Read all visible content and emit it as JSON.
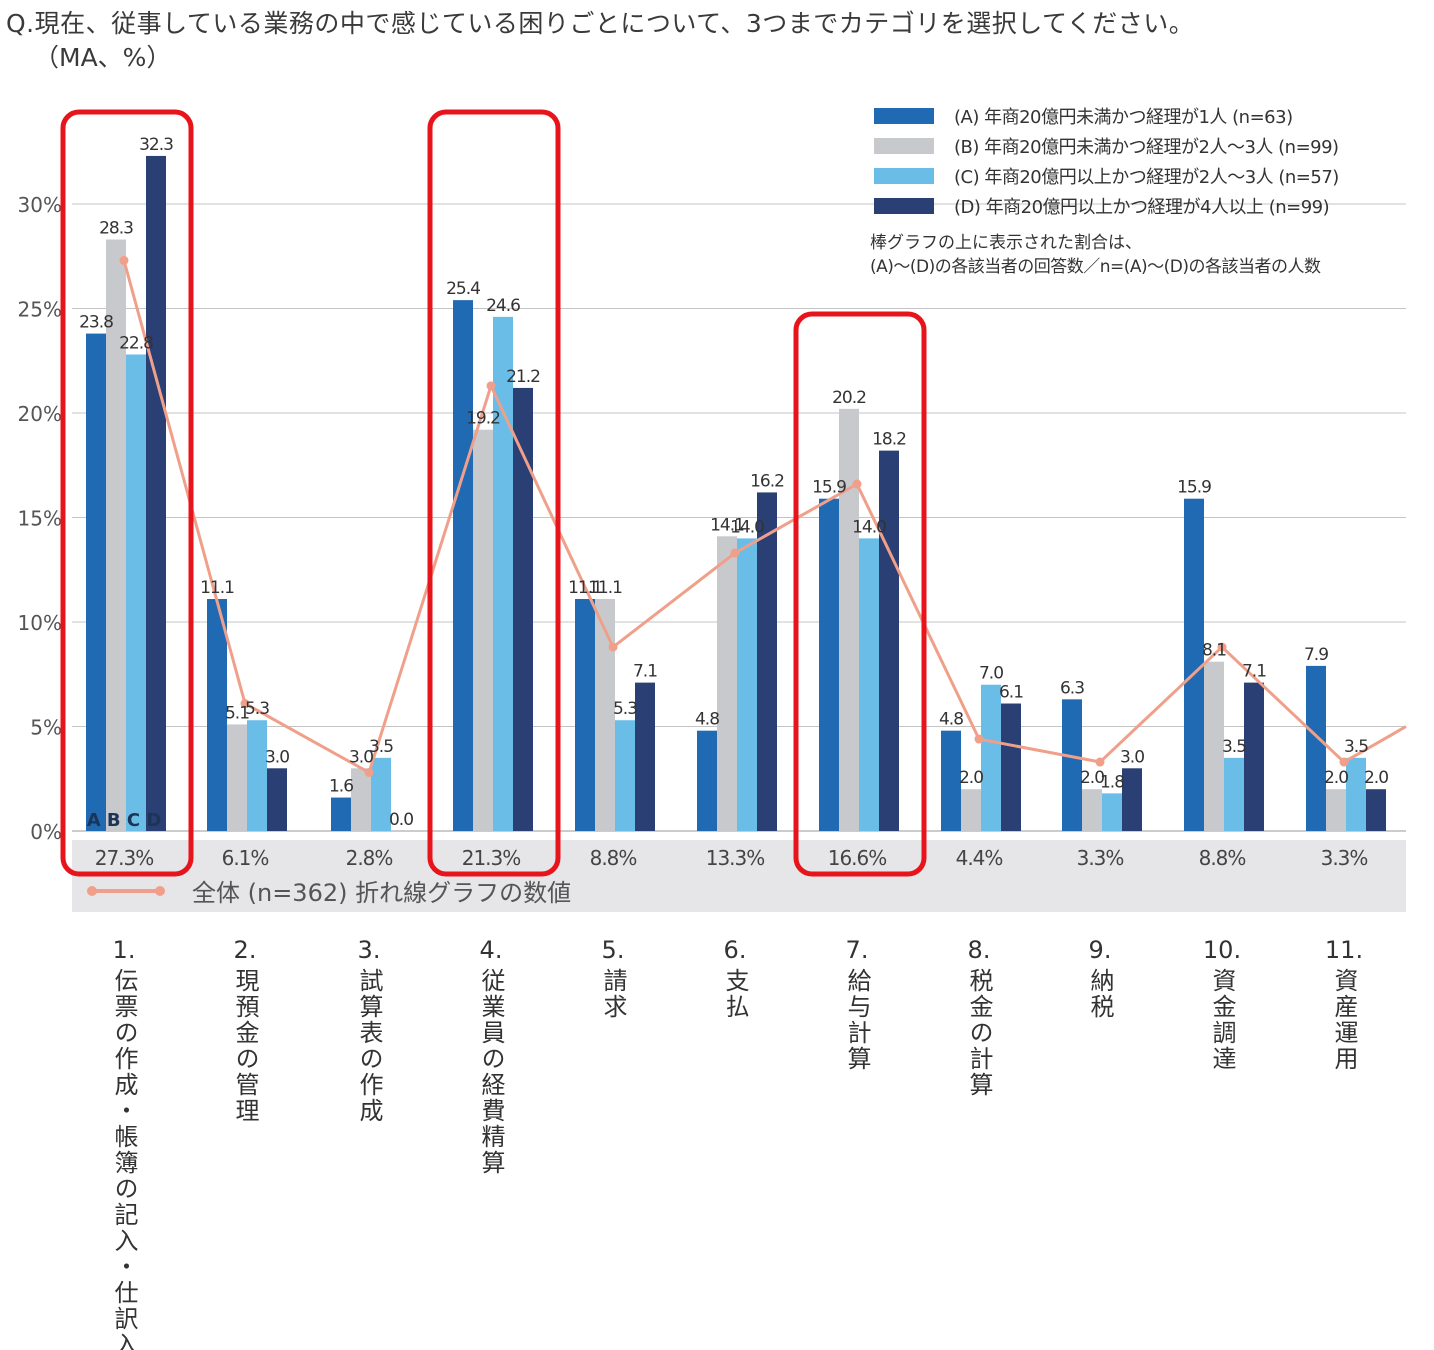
{
  "question": "Q.現在、従事している業務の中で感じている困りごとについて、3つまでカテゴリを選択してください。",
  "question_note": "（MA、%）",
  "colors": {
    "A": "#1f6ab3",
    "B": "#c8c9cc",
    "C": "#69bde6",
    "D": "#2a3f73",
    "line": "#f0a08a",
    "highlight": "#e8141c",
    "band": "#e6e6e8"
  },
  "legend_note_line1": "棒グラフの上に表示された割合は、",
  "legend_note_line2": "(A)～(D)の各該当者の回答数／n=(A)～(D)の各該当者の人数",
  "bar_letters": "A B C D",
  "chart_data": {
    "type": "bar",
    "title": "",
    "ylabel": "",
    "ylim": [
      0,
      33
    ],
    "y_ticks": [
      "0%",
      "5%",
      "10%",
      "15%",
      "20%",
      "25%",
      "30%"
    ],
    "y_tick_values": [
      0,
      5,
      10,
      15,
      20,
      25,
      30
    ],
    "categories": [
      {
        "num": "1.",
        "name": "伝票の作成・帳簿の記入・仕訳入力"
      },
      {
        "num": "2.",
        "name": "現預金の管理"
      },
      {
        "num": "3.",
        "name": "試算表の作成"
      },
      {
        "num": "4.",
        "name": "従業員の経費精算"
      },
      {
        "num": "5.",
        "name": "請求"
      },
      {
        "num": "6.",
        "name": "支払"
      },
      {
        "num": "7.",
        "name": "給与計算"
      },
      {
        "num": "8.",
        "name": "税金の計算"
      },
      {
        "num": "9.",
        "name": "納税"
      },
      {
        "num": "10.",
        "name": "資金調達"
      },
      {
        "num": "11.",
        "name": "資産運用"
      }
    ],
    "series": [
      {
        "name": "(A) 年商20億円未満かつ経理が1人 (n=63)",
        "key": "A",
        "values": [
          23.8,
          11.1,
          1.6,
          25.4,
          11.1,
          4.8,
          15.9,
          4.8,
          6.3,
          15.9,
          7.9
        ],
        "labels": [
          "23.8",
          "11.1",
          "1.6",
          "25.4",
          "11.1",
          "4.8",
          "15.9",
          "4.8",
          "6.3",
          "15.9",
          "7.9"
        ]
      },
      {
        "name": "(B) 年商20億円未満かつ経理が2人～3人 (n=99)",
        "key": "B",
        "values": [
          28.3,
          5.1,
          3.0,
          19.2,
          11.1,
          14.1,
          20.2,
          2.0,
          2.0,
          8.1,
          2.0
        ],
        "labels": [
          "28.3",
          "5.1",
          "3.0",
          "19.2",
          "11.1",
          "14.1",
          "20.2",
          "2.0",
          "2.0",
          "8.1",
          "2.0"
        ]
      },
      {
        "name": "(C) 年商20億円以上かつ経理が2人～3人 (n=57)",
        "key": "C",
        "values": [
          22.8,
          5.3,
          3.5,
          24.6,
          5.3,
          14.0,
          14.0,
          7.0,
          1.8,
          3.5,
          3.5
        ],
        "labels": [
          "22.8",
          "5.3",
          "3.5",
          "24.6",
          "5.3",
          "14.0",
          "14.0",
          "7.0",
          "1.8",
          "3.5",
          "3.5"
        ]
      },
      {
        "name": "(D) 年商20億円以上かつ経理が4人以上 (n=99)",
        "key": "D",
        "values": [
          32.3,
          3.0,
          0.0,
          21.2,
          7.1,
          16.2,
          18.2,
          6.1,
          3.0,
          7.1,
          2.0
        ],
        "labels": [
          "32.3",
          "3.0",
          "0.0",
          "21.2",
          "7.1",
          "16.2",
          "18.2",
          "6.1",
          "3.0",
          "7.1",
          "2.0"
        ]
      }
    ],
    "line": {
      "name": "全体 (n=362) 折れ線グラフの数値",
      "values": [
        27.3,
        6.1,
        2.8,
        21.3,
        8.8,
        13.3,
        16.6,
        4.4,
        3.3,
        8.8,
        3.3
      ],
      "labels": [
        "27.3%",
        "6.1%",
        "2.8%",
        "21.3%",
        "8.8%",
        "13.3%",
        "16.6%",
        "4.4%",
        "3.3%",
        "8.8%",
        "3.3%"
      ]
    },
    "highlighted_categories": [
      0,
      3,
      6
    ],
    "grid": true,
    "legend_position": "top-right"
  }
}
